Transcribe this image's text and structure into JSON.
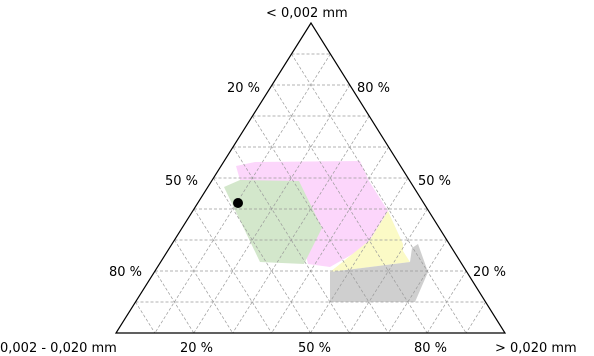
{
  "axes": {
    "top": "< 0,002 mm",
    "left": "0,002 - 0,020 mm",
    "right": "> 0,020 mm"
  },
  "ticks": {
    "left_edge": [
      "20 %",
      "50 %",
      "80 %"
    ],
    "right_edge": [
      "80 %",
      "50 %",
      "20 %"
    ],
    "bottom_edge": [
      "20 %",
      "50 %",
      "80 %"
    ]
  },
  "colors": {
    "pink": "#fcd6fb",
    "green": "#d3e7cb",
    "yellow": "#fbfac6",
    "gray": "#cfcfcf",
    "grid": "#9a9a9a",
    "frame": "#000000",
    "marker": "#000000"
  }
}
